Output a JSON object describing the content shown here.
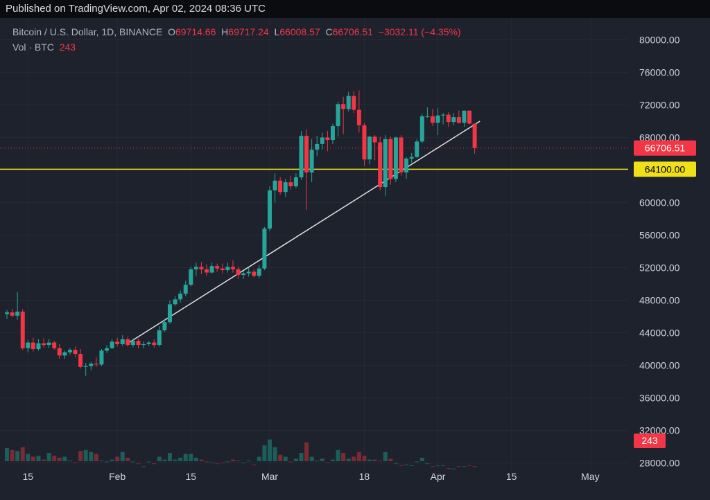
{
  "header": {
    "published": "Published on TradingView.com, Apr 02, 2024 08:36 UTC"
  },
  "legend": {
    "symbol": "Bitcoin / U.S. Dollar, 1D, BINANCE",
    "o_label": "O",
    "o": "69714.66",
    "h_label": "H",
    "h": "69717.24",
    "l_label": "L",
    "l": "66008.57",
    "c_label": "C",
    "c": "66706.51",
    "change": "−3032.11 (−4.35%)",
    "vol_label": "Vol · BTC",
    "vol": "243"
  },
  "price_badges": {
    "last": "66706.51",
    "level": "64100.00",
    "volume": "243"
  },
  "colors": {
    "up": "#26a69a",
    "down": "#f23645",
    "level": "#f0e01a",
    "trend": "#e0e0e0",
    "background": "#1e222d"
  },
  "chart_data": {
    "type": "candlestick",
    "title": "Bitcoin / U.S. Dollar, 1D, BINANCE",
    "ylim": [
      26000,
      82000
    ],
    "y_ticks": [
      "80000.00",
      "76000.00",
      "72000.00",
      "68000.00",
      "64000.00",
      "60000.00",
      "56000.00",
      "52000.00",
      "48000.00",
      "44000.00",
      "40000.00",
      "36000.00",
      "32000.00",
      "28000.00"
    ],
    "x_ticks": [
      "15",
      "Feb",
      "15",
      "Mar",
      "18",
      "Apr",
      "15",
      "May"
    ],
    "x_tick_index": [
      4,
      21,
      35,
      50,
      68,
      82,
      96,
      111
    ],
    "horizontal_level": 64100,
    "trend_line": {
      "from": {
        "index": 23,
        "price": 42700
      },
      "to": {
        "index": 90,
        "price": 70000
      }
    },
    "last_price": 66706.51,
    "vol_scale_btc_per_price": 8.5,
    "volume_base_price": 27000,
    "candles": [
      [
        46300,
        46800,
        45700,
        46500,
        24000
      ],
      [
        46500,
        46900,
        45900,
        46100,
        22000
      ],
      [
        46100,
        49000,
        45600,
        46600,
        21000
      ],
      [
        46600,
        46900,
        41900,
        42100,
        25000
      ],
      [
        42100,
        43100,
        41600,
        42800,
        18000
      ],
      [
        42800,
        43400,
        41700,
        42000,
        15000
      ],
      [
        42000,
        43200,
        41800,
        42700,
        16000
      ],
      [
        42700,
        43300,
        42200,
        42500,
        12000
      ],
      [
        42500,
        43200,
        42100,
        42800,
        19000
      ],
      [
        42800,
        43000,
        41900,
        42100,
        16000
      ],
      [
        42100,
        42600,
        40800,
        41200,
        14000
      ],
      [
        41200,
        41800,
        40800,
        41600,
        15000
      ],
      [
        41600,
        42100,
        41300,
        41900,
        11000
      ],
      [
        41900,
        42300,
        41000,
        41400,
        9000
      ],
      [
        41400,
        42000,
        39600,
        39800,
        21000
      ],
      [
        39800,
        40300,
        38700,
        39900,
        22000
      ],
      [
        39900,
        40400,
        39400,
        40200,
        20000
      ],
      [
        40200,
        41000,
        39800,
        40100,
        18000
      ],
      [
        40100,
        42000,
        39900,
        41800,
        11000
      ],
      [
        41800,
        42500,
        41500,
        42100,
        10000
      ],
      [
        42100,
        43200,
        42000,
        42900,
        12000
      ],
      [
        42900,
        43400,
        42300,
        42600,
        15000
      ],
      [
        42600,
        43700,
        42400,
        43200,
        20000
      ],
      [
        43200,
        43500,
        42300,
        42500,
        14000
      ],
      [
        42500,
        43300,
        42200,
        43000,
        10000
      ],
      [
        43000,
        43300,
        42100,
        42500,
        8000
      ],
      [
        42500,
        42900,
        42100,
        42600,
        5000
      ],
      [
        42600,
        43000,
        42400,
        42800,
        10000
      ],
      [
        42800,
        43200,
        42200,
        42500,
        8000
      ],
      [
        42500,
        44800,
        42300,
        44300,
        15000
      ],
      [
        44300,
        45700,
        44100,
        45300,
        12000
      ],
      [
        45300,
        48000,
        45100,
        47500,
        19000
      ],
      [
        47500,
        48500,
        47300,
        48100,
        12000
      ],
      [
        48100,
        49200,
        47700,
        48800,
        14000
      ],
      [
        48800,
        50400,
        48500,
        49900,
        18000
      ],
      [
        49900,
        52100,
        49700,
        51800,
        18000
      ],
      [
        51800,
        52600,
        51000,
        52100,
        14000
      ],
      [
        52100,
        52700,
        51200,
        51800,
        12000
      ],
      [
        51800,
        52400,
        51000,
        51400,
        10000
      ],
      [
        51400,
        52600,
        51300,
        52200,
        9000
      ],
      [
        52200,
        52500,
        51500,
        51900,
        8000
      ],
      [
        51900,
        52500,
        51300,
        51700,
        9000
      ],
      [
        51700,
        52600,
        51400,
        52100,
        10000
      ],
      [
        52100,
        52900,
        51400,
        51800,
        12000
      ],
      [
        51800,
        52100,
        50600,
        51100,
        11000
      ],
      [
        51100,
        51600,
        50600,
        51300,
        9000
      ],
      [
        51300,
        52000,
        50900,
        51500,
        11000
      ],
      [
        51500,
        51800,
        50800,
        51000,
        7000
      ],
      [
        51000,
        52300,
        50700,
        51900,
        15000
      ],
      [
        51900,
        57000,
        51700,
        56800,
        27000
      ],
      [
        56800,
        62000,
        56500,
        61500,
        33000
      ],
      [
        61500,
        63600,
        60000,
        62700,
        25000
      ],
      [
        62700,
        63100,
        61000,
        61300,
        17000
      ],
      [
        61300,
        62900,
        60700,
        62500,
        15000
      ],
      [
        62500,
        63300,
        61600,
        62000,
        10000
      ],
      [
        62000,
        63600,
        61800,
        63100,
        13000
      ],
      [
        63100,
        68800,
        62800,
        68200,
        19000
      ],
      [
        68200,
        69000,
        59100,
        63700,
        30000
      ],
      [
        63700,
        67800,
        62500,
        66500,
        15000
      ],
      [
        66500,
        68200,
        65700,
        67200,
        11000
      ],
      [
        67200,
        68600,
        66500,
        68000,
        13000
      ],
      [
        68000,
        68800,
        66300,
        67700,
        9000
      ],
      [
        67700,
        69700,
        67200,
        69400,
        12000
      ],
      [
        69400,
        72400,
        68100,
        72100,
        22000
      ],
      [
        72100,
        73000,
        68400,
        71500,
        19000
      ],
      [
        71500,
        73600,
        71200,
        73100,
        13000
      ],
      [
        73100,
        73700,
        71000,
        71400,
        15000
      ],
      [
        71400,
        73800,
        68600,
        69500,
        20000
      ],
      [
        69500,
        69800,
        64500,
        65300,
        16000
      ],
      [
        65300,
        68200,
        64700,
        68100,
        12000
      ],
      [
        68100,
        68300,
        65200,
        67400,
        12000
      ],
      [
        67400,
        68100,
        61500,
        61900,
        11000
      ],
      [
        61900,
        68300,
        60800,
        67800,
        20000
      ],
      [
        67800,
        68100,
        62200,
        62900,
        13000
      ],
      [
        62900,
        68100,
        62500,
        68000,
        8000
      ],
      [
        68000,
        68300,
        63300,
        63700,
        6000
      ],
      [
        63700,
        65600,
        62900,
        65400,
        7000
      ],
      [
        65400,
        66100,
        64900,
        65600,
        6000
      ],
      [
        65600,
        67800,
        65500,
        67500,
        10000
      ],
      [
        67500,
        70900,
        67300,
        70600,
        14000
      ],
      [
        70600,
        71700,
        70400,
        70600,
        8000
      ],
      [
        70600,
        71500,
        69400,
        69800,
        5000
      ],
      [
        69800,
        71600,
        68300,
        70700,
        6000
      ],
      [
        70700,
        71000,
        69600,
        70800,
        6000
      ],
      [
        70800,
        71100,
        69300,
        69900,
        3000
      ],
      [
        69900,
        71000,
        69500,
        70500,
        2500
      ],
      [
        70500,
        71300,
        69700,
        69800,
        5000
      ],
      [
        69800,
        71300,
        69300,
        71300,
        5000
      ],
      [
        71300,
        71300,
        69600,
        69700,
        6000
      ],
      [
        69700,
        69700,
        66000,
        66700,
        5000
      ]
    ]
  }
}
